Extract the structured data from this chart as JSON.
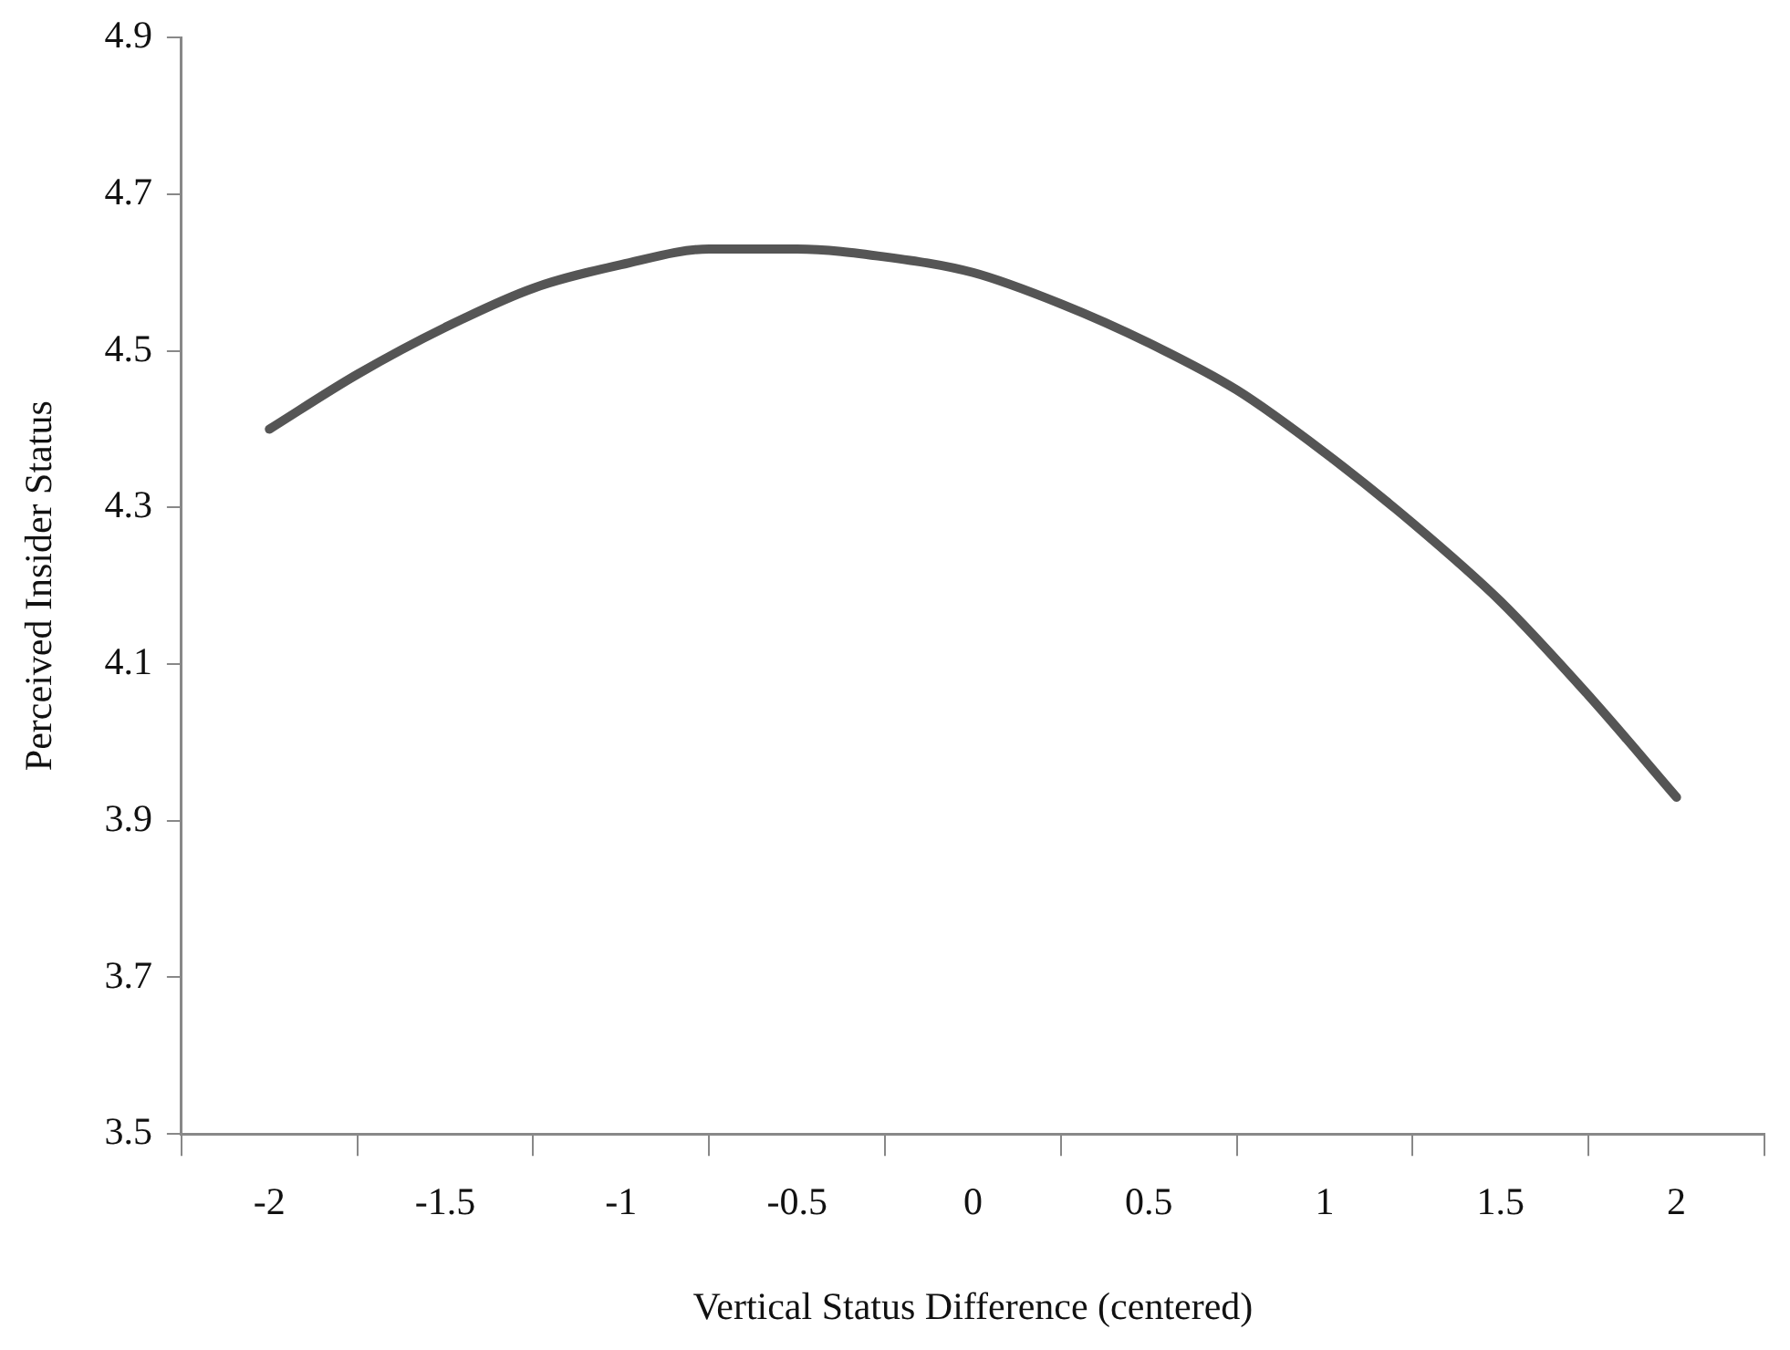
{
  "chart_data": {
    "type": "line",
    "xlabel": "Vertical Status Difference (centered)",
    "ylabel": "Perceived Insider Status",
    "x": [
      -2,
      -1.75,
      -1.5,
      -1.25,
      -1,
      -0.75,
      -0.5,
      -0.25,
      0,
      0.25,
      0.5,
      0.75,
      1,
      1.25,
      1.5,
      1.75,
      2
    ],
    "series": [
      {
        "color": "#555555",
        "values": [
          4.4,
          4.47,
          4.53,
          4.58,
          4.61,
          4.63,
          4.63,
          4.62,
          4.6,
          4.56,
          4.51,
          4.45,
          4.37,
          4.28,
          4.18,
          4.06,
          3.93
        ]
      }
    ],
    "xlim": [
      -2.25,
      2.25
    ],
    "xticks": [
      {
        "value": -2.25,
        "label": null
      },
      -2,
      {
        "value": -1.75,
        "label": null
      },
      -1.5,
      {
        "value": -1.25,
        "label": null
      },
      -1,
      {
        "value": -0.75,
        "label": null
      },
      -0.5,
      {
        "value": -0.25,
        "label": null
      },
      0,
      {
        "value": 0.25,
        "label": null
      },
      0.5,
      {
        "value": 0.75,
        "label": null
      },
      1,
      {
        "value": 1.25,
        "label": null
      },
      1.5,
      {
        "value": 1.75,
        "label": null
      },
      2,
      {
        "value": 2.25,
        "label": null
      }
    ],
    "ylim": [
      3.5,
      4.9
    ],
    "yticks": [
      3.5,
      3.7,
      3.9,
      4.1,
      4.3,
      4.5,
      4.7,
      4.9
    ],
    "grid": false,
    "legend": false,
    "marker": "none",
    "line_style": "solid"
  }
}
